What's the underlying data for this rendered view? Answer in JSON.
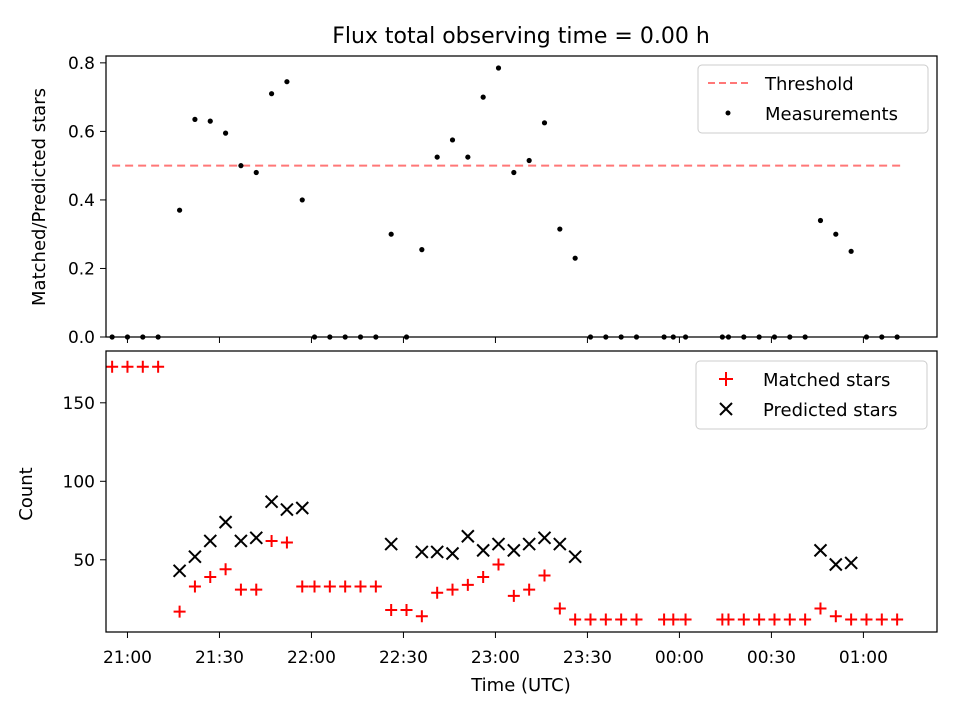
{
  "chart_data": [
    {
      "type": "scatter",
      "title": "Flux total observing time = 0.00 h",
      "xlabel": "",
      "ylabel": "Matched/Predicted stars",
      "xlim": [
        "20:53",
        "01:24"
      ],
      "ylim": [
        0,
        0.82
      ],
      "yticks": [
        "0.0",
        "0.2",
        "0.4",
        "0.6",
        "0.8"
      ],
      "grid": false,
      "legend_position": "top-right",
      "series": [
        {
          "name": "Threshold",
          "style": "dashed-line",
          "color": "#ff7777",
          "points": [
            {
              "x": "20:55",
              "y": 0.5
            },
            {
              "x": "01:12",
              "y": 0.5
            }
          ]
        },
        {
          "name": "Measurements",
          "style": "dot",
          "color": "#000000",
          "points": [
            {
              "x": "20:55",
              "y": 0.0
            },
            {
              "x": "21:00",
              "y": 0.0
            },
            {
              "x": "21:05",
              "y": 0.0
            },
            {
              "x": "21:10",
              "y": 0.0
            },
            {
              "x": "21:17",
              "y": 0.37
            },
            {
              "x": "21:22",
              "y": 0.635
            },
            {
              "x": "21:27",
              "y": 0.63
            },
            {
              "x": "21:32",
              "y": 0.595
            },
            {
              "x": "21:37",
              "y": 0.5
            },
            {
              "x": "21:42",
              "y": 0.48
            },
            {
              "x": "21:47",
              "y": 0.71
            },
            {
              "x": "21:52",
              "y": 0.745
            },
            {
              "x": "21:57",
              "y": 0.4
            },
            {
              "x": "22:01",
              "y": 0.0
            },
            {
              "x": "22:06",
              "y": 0.0
            },
            {
              "x": "22:11",
              "y": 0.0
            },
            {
              "x": "22:16",
              "y": 0.0
            },
            {
              "x": "22:21",
              "y": 0.0
            },
            {
              "x": "22:26",
              "y": 0.3
            },
            {
              "x": "22:31",
              "y": 0.0
            },
            {
              "x": "22:36",
              "y": 0.255
            },
            {
              "x": "22:41",
              "y": 0.525
            },
            {
              "x": "22:46",
              "y": 0.575
            },
            {
              "x": "22:51",
              "y": 0.525
            },
            {
              "x": "22:56",
              "y": 0.7
            },
            {
              "x": "23:01",
              "y": 0.785
            },
            {
              "x": "23:06",
              "y": 0.48
            },
            {
              "x": "23:11",
              "y": 0.515
            },
            {
              "x": "23:16",
              "y": 0.625
            },
            {
              "x": "23:21",
              "y": 0.315
            },
            {
              "x": "23:26",
              "y": 0.23
            },
            {
              "x": "23:31",
              "y": 0.0
            },
            {
              "x": "23:36",
              "y": 0.0
            },
            {
              "x": "23:41",
              "y": 0.0
            },
            {
              "x": "23:46",
              "y": 0.0
            },
            {
              "x": "23:55",
              "y": 0.0
            },
            {
              "x": "23:58",
              "y": 0.0
            },
            {
              "x": "00:02",
              "y": 0.0
            },
            {
              "x": "00:14",
              "y": 0.0
            },
            {
              "x": "00:16",
              "y": 0.0
            },
            {
              "x": "00:21",
              "y": 0.0
            },
            {
              "x": "00:26",
              "y": 0.0
            },
            {
              "x": "00:31",
              "y": 0.0
            },
            {
              "x": "00:36",
              "y": 0.0
            },
            {
              "x": "00:41",
              "y": 0.0
            },
            {
              "x": "00:46",
              "y": 0.34
            },
            {
              "x": "00:51",
              "y": 0.3
            },
            {
              "x": "00:56",
              "y": 0.25
            },
            {
              "x": "01:01",
              "y": 0.0
            },
            {
              "x": "01:06",
              "y": 0.0
            },
            {
              "x": "01:11",
              "y": 0.0
            }
          ]
        }
      ]
    },
    {
      "type": "scatter",
      "title": "",
      "xlabel": "Time (UTC)",
      "ylabel": "Count",
      "xlim": [
        "20:53",
        "01:24"
      ],
      "ylim": [
        4,
        183
      ],
      "xticks": [
        "21:00",
        "21:30",
        "22:00",
        "22:30",
        "23:00",
        "23:30",
        "00:00",
        "00:30",
        "01:00"
      ],
      "yticks": [
        "50",
        "100",
        "150"
      ],
      "grid": false,
      "legend_position": "top-right",
      "series": [
        {
          "name": "Matched stars",
          "style": "plus",
          "color": "#ff0000",
          "points": [
            {
              "x": "20:55",
              "y": 173
            },
            {
              "x": "21:00",
              "y": 173
            },
            {
              "x": "21:05",
              "y": 173
            },
            {
              "x": "21:10",
              "y": 173
            },
            {
              "x": "21:17",
              "y": 17
            },
            {
              "x": "21:22",
              "y": 33
            },
            {
              "x": "21:27",
              "y": 39
            },
            {
              "x": "21:32",
              "y": 44
            },
            {
              "x": "21:37",
              "y": 31
            },
            {
              "x": "21:42",
              "y": 31
            },
            {
              "x": "21:47",
              "y": 62
            },
            {
              "x": "21:52",
              "y": 61
            },
            {
              "x": "21:57",
              "y": 33
            },
            {
              "x": "22:01",
              "y": 33
            },
            {
              "x": "22:06",
              "y": 33
            },
            {
              "x": "22:11",
              "y": 33
            },
            {
              "x": "22:16",
              "y": 33
            },
            {
              "x": "22:21",
              "y": 33
            },
            {
              "x": "22:26",
              "y": 18
            },
            {
              "x": "22:31",
              "y": 18
            },
            {
              "x": "22:36",
              "y": 14
            },
            {
              "x": "22:41",
              "y": 29
            },
            {
              "x": "22:46",
              "y": 31
            },
            {
              "x": "22:51",
              "y": 34
            },
            {
              "x": "22:56",
              "y": 39
            },
            {
              "x": "23:01",
              "y": 47
            },
            {
              "x": "23:06",
              "y": 27
            },
            {
              "x": "23:11",
              "y": 31
            },
            {
              "x": "23:16",
              "y": 40
            },
            {
              "x": "23:21",
              "y": 19
            },
            {
              "x": "23:26",
              "y": 12
            },
            {
              "x": "23:31",
              "y": 12
            },
            {
              "x": "23:36",
              "y": 12
            },
            {
              "x": "23:41",
              "y": 12
            },
            {
              "x": "23:46",
              "y": 12
            },
            {
              "x": "23:55",
              "y": 12
            },
            {
              "x": "23:58",
              "y": 12
            },
            {
              "x": "00:02",
              "y": 12
            },
            {
              "x": "00:14",
              "y": 12
            },
            {
              "x": "00:16",
              "y": 12
            },
            {
              "x": "00:21",
              "y": 12
            },
            {
              "x": "00:26",
              "y": 12
            },
            {
              "x": "00:31",
              "y": 12
            },
            {
              "x": "00:36",
              "y": 12
            },
            {
              "x": "00:41",
              "y": 12
            },
            {
              "x": "00:46",
              "y": 19
            },
            {
              "x": "00:51",
              "y": 14
            },
            {
              "x": "00:56",
              "y": 12
            },
            {
              "x": "01:01",
              "y": 12
            },
            {
              "x": "01:06",
              "y": 12
            },
            {
              "x": "01:11",
              "y": 12
            }
          ]
        },
        {
          "name": "Predicted stars",
          "style": "x",
          "color": "#000000",
          "points": [
            {
              "x": "21:17",
              "y": 43
            },
            {
              "x": "21:22",
              "y": 52
            },
            {
              "x": "21:27",
              "y": 62
            },
            {
              "x": "21:32",
              "y": 74
            },
            {
              "x": "21:37",
              "y": 62
            },
            {
              "x": "21:42",
              "y": 64
            },
            {
              "x": "21:47",
              "y": 87
            },
            {
              "x": "21:52",
              "y": 82
            },
            {
              "x": "21:57",
              "y": 83
            },
            {
              "x": "22:26",
              "y": 60
            },
            {
              "x": "22:36",
              "y": 55
            },
            {
              "x": "22:41",
              "y": 55
            },
            {
              "x": "22:46",
              "y": 54
            },
            {
              "x": "22:51",
              "y": 65
            },
            {
              "x": "22:56",
              "y": 56
            },
            {
              "x": "23:01",
              "y": 60
            },
            {
              "x": "23:06",
              "y": 56
            },
            {
              "x": "23:11",
              "y": 60
            },
            {
              "x": "23:16",
              "y": 64
            },
            {
              "x": "23:21",
              "y": 60
            },
            {
              "x": "23:26",
              "y": 52
            },
            {
              "x": "00:46",
              "y": 56
            },
            {
              "x": "00:51",
              "y": 47
            },
            {
              "x": "00:56",
              "y": 48
            }
          ]
        }
      ]
    }
  ]
}
